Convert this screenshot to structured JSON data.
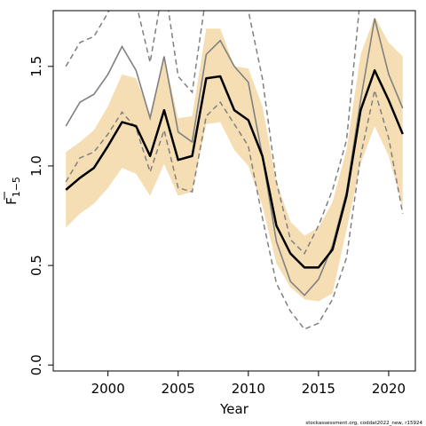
{
  "chart_data": {
    "type": "line",
    "xlabel": "Year",
    "ylabel_main": "F",
    "ylabel_sub": "1−5",
    "xlim": [
      1996.1,
      2021.9
    ],
    "ylim": [
      -0.03,
      1.78
    ],
    "x_ticks": [
      2000,
      2005,
      2010,
      2015,
      2020
    ],
    "x_tick_labels": [
      "2000",
      "2005",
      "2010",
      "2015",
      "2020"
    ],
    "y_ticks": [
      0.0,
      0.5,
      1.0,
      1.5
    ],
    "y_tick_labels": [
      "0.0",
      "0.5",
      "1.0",
      "1.5"
    ],
    "grid": false,
    "colors": {
      "band": "#f5deb3",
      "estimate": "#000000",
      "comparison": "#808080",
      "comparison_ci": "#808080"
    },
    "x": [
      1997,
      1998,
      1999,
      2000,
      2001,
      2002,
      2003,
      2004,
      2005,
      2006,
      2007,
      2008,
      2009,
      2010,
      2011,
      2012,
      2013,
      2014,
      2015,
      2016,
      2017,
      2018,
      2019,
      2020,
      2021
    ],
    "series": [
      {
        "role": "band",
        "lower": [
          0.69,
          0.76,
          0.81,
          0.89,
          0.99,
          0.96,
          0.85,
          1.01,
          0.85,
          0.87,
          1.21,
          1.22,
          1.08,
          1.0,
          0.8,
          0.51,
          0.39,
          0.33,
          0.32,
          0.36,
          0.68,
          1.01,
          1.2,
          1.05,
          0.79
        ],
        "upper": [
          1.07,
          1.12,
          1.18,
          1.3,
          1.46,
          1.44,
          1.26,
          1.55,
          1.24,
          1.25,
          1.69,
          1.69,
          1.5,
          1.49,
          1.3,
          0.92,
          0.72,
          0.65,
          0.69,
          0.82,
          1.08,
          1.56,
          1.75,
          1.62,
          1.55
        ]
      },
      {
        "role": "estimate",
        "values": [
          0.88,
          0.94,
          0.99,
          1.1,
          1.22,
          1.2,
          1.05,
          1.28,
          1.03,
          1.05,
          1.44,
          1.45,
          1.28,
          1.23,
          1.05,
          0.7,
          0.56,
          0.49,
          0.49,
          0.58,
          0.85,
          1.28,
          1.48,
          1.33,
          1.16
        ]
      },
      {
        "role": "comparison",
        "values": [
          1.2,
          1.32,
          1.36,
          1.46,
          1.6,
          1.48,
          1.24,
          1.55,
          1.17,
          1.12,
          1.56,
          1.63,
          1.5,
          1.42,
          1.05,
          0.62,
          0.42,
          0.35,
          0.43,
          0.6,
          0.87,
          1.33,
          1.74,
          1.46,
          1.29
        ]
      },
      {
        "role": "comparison_lower",
        "values": [
          0.92,
          1.04,
          1.07,
          1.16,
          1.27,
          1.19,
          0.97,
          1.18,
          0.89,
          0.87,
          1.25,
          1.32,
          1.21,
          1.1,
          0.74,
          0.41,
          0.27,
          0.18,
          0.21,
          0.33,
          0.54,
          1.05,
          1.38,
          1.14,
          0.76
        ]
      },
      {
        "role": "comparison_upper",
        "values": [
          1.5,
          1.62,
          1.65,
          1.77,
          1.93,
          1.82,
          1.52,
          1.93,
          1.45,
          1.37,
          1.86,
          1.93,
          1.8,
          1.78,
          1.44,
          0.92,
          0.63,
          0.56,
          0.7,
          0.88,
          1.13,
          1.86,
          2.0,
          1.85,
          1.8
        ]
      }
    ],
    "credit": "stockassessment.org, coddat2022_new, r15924"
  }
}
